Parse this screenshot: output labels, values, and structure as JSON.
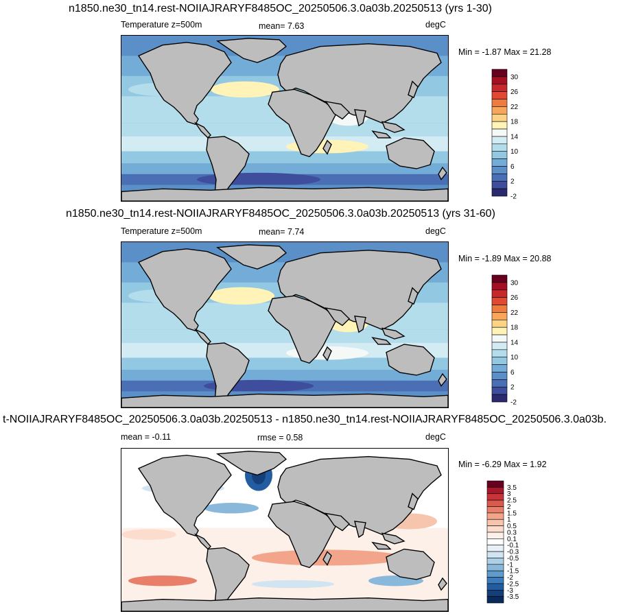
{
  "panels": [
    {
      "title": "n1850.ne30_tn14.rest-NOIIAJRARYF8485OC_20250506.3.0a03b.20250513 (yrs 1-30)",
      "left_label": "Temperature z=500m",
      "center_label": "mean=   7.63",
      "right_label": "degC",
      "minmax": "Min = -1.87 Max =  21.28"
    },
    {
      "title": "n1850.ne30_tn14.rest-NOIIAJRARYF8485OC_20250506.3.0a03b.20250513 (yrs 31-60)",
      "left_label": "Temperature z=500m",
      "center_label": "mean=   7.74",
      "right_label": "degC",
      "minmax": "Min = -1.89 Max =  20.88"
    },
    {
      "title": "t-NOIIAJRARYF8485OC_20250506.3.0a03b.20250513 - n1850.ne30_tn14.rest-NOIIAJRARYF8485OC_20250506.3.0a03b.",
      "left_label": "mean =  -0.11",
      "center_label": "rmse =   0.58",
      "right_label": "degC",
      "minmax": "Min = -6.29 Max =   1.92"
    }
  ],
  "colorbars": {
    "temperature": {
      "labels": [
        "30",
        "26",
        "22",
        "18",
        "14",
        "10",
        "6",
        "2",
        "-2"
      ],
      "colors": [
        "#67001f",
        "#a50f24",
        "#c8272b",
        "#e04a32",
        "#f07b3f",
        "#f8a75a",
        "#fcd284",
        "#fff3b8",
        "#f4f9f8",
        "#d3ebf3",
        "#b4ddec",
        "#93c8e3",
        "#73acd6",
        "#5a8fc8",
        "#4b6fb5",
        "#3e4e9c",
        "#2c2a6e"
      ]
    },
    "difference": {
      "labels": [
        "3.5",
        "3",
        "2.5",
        "2",
        "1.5",
        "1",
        "0.5",
        "0.3",
        "0.1",
        "-0.1",
        "-0.3",
        "-0.5",
        "-1",
        "-1.5",
        "-2",
        "-2.5",
        "-3",
        "-3.5"
      ],
      "colors": [
        "#67001f",
        "#a8172b",
        "#c9343a",
        "#db5a4e",
        "#e77f6a",
        "#f2a58b",
        "#f7c4ad",
        "#fbdccd",
        "#fdf0e8",
        "#ffffff",
        "#e9f1f8",
        "#d1e4f1",
        "#aed0e7",
        "#89b8da",
        "#5f9ccb",
        "#3c7cba",
        "#235da1",
        "#153f7a",
        "#0b2a5c"
      ]
    }
  },
  "chart_data": [
    {
      "type": "heatmap",
      "title": "n1850.ne30_tn14.rest-NOIIAJRARYF8485OC_20250506.3.0a03b.20250513 (yrs 1-30)",
      "variable": "Temperature z=500m",
      "units": "degC",
      "mean": 7.63,
      "min": -1.87,
      "max": 21.28,
      "colorbar_levels": [
        -2,
        2,
        6,
        10,
        14,
        18,
        22,
        26,
        30
      ]
    },
    {
      "type": "heatmap",
      "title": "n1850.ne30_tn14.rest-NOIIAJRARYF8485OC_20250506.3.0a03b.20250513 (yrs 31-60)",
      "variable": "Temperature z=500m",
      "units": "degC",
      "mean": 7.74,
      "min": -1.89,
      "max": 20.88,
      "colorbar_levels": [
        -2,
        2,
        6,
        10,
        14,
        18,
        22,
        26,
        30
      ]
    },
    {
      "type": "heatmap",
      "title": "t-NOIIAJRARYF8485OC_20250506.3.0a03b.20250513 - n1850.ne30_tn14.rest-NOIIAJRARYF8485OC_20250506.3.0a03b.",
      "units": "degC",
      "mean": -0.11,
      "rmse": 0.58,
      "min": -6.29,
      "max": 1.92,
      "colorbar_levels": [
        -3.5,
        -3,
        -2.5,
        -2,
        -1.5,
        -1,
        -0.5,
        -0.3,
        -0.1,
        0.1,
        0.3,
        0.5,
        1,
        1.5,
        2,
        2.5,
        3,
        3.5
      ]
    }
  ]
}
